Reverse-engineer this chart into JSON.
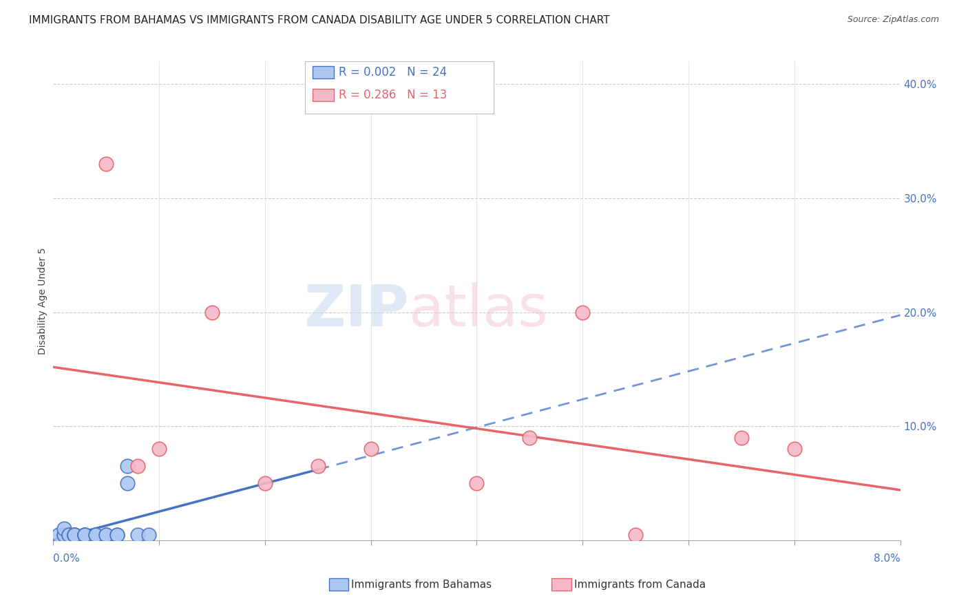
{
  "title": "IMMIGRANTS FROM BAHAMAS VS IMMIGRANTS FROM CANADA DISABILITY AGE UNDER 5 CORRELATION CHART",
  "source": "Source: ZipAtlas.com",
  "ylabel": "Disability Age Under 5",
  "xlim": [
    0.0,
    0.08
  ],
  "ylim": [
    0.0,
    0.42
  ],
  "legend_entries": [
    {
      "label": "Immigrants from Bahamas",
      "color": "#adc8f0",
      "edge": "#5b8dd9",
      "R": "0.002",
      "N": "24"
    },
    {
      "label": "Immigrants from Canada",
      "color": "#f5b8c8",
      "edge": "#e07080",
      "R": "0.286",
      "N": "13"
    }
  ],
  "bahamas_x": [
    0.0005,
    0.001,
    0.001,
    0.001,
    0.0015,
    0.0015,
    0.002,
    0.002,
    0.002,
    0.002,
    0.003,
    0.003,
    0.003,
    0.003,
    0.004,
    0.004,
    0.005,
    0.005,
    0.006,
    0.006,
    0.007,
    0.007,
    0.008,
    0.009
  ],
  "bahamas_y": [
    0.005,
    0.005,
    0.005,
    0.01,
    0.005,
    0.005,
    0.005,
    0.005,
    0.005,
    0.005,
    0.005,
    0.005,
    0.005,
    0.005,
    0.005,
    0.005,
    0.005,
    0.005,
    0.005,
    0.005,
    0.05,
    0.065,
    0.005,
    0.005
  ],
  "canada_x": [
    0.005,
    0.008,
    0.01,
    0.015,
    0.02,
    0.025,
    0.03,
    0.04,
    0.045,
    0.05,
    0.055,
    0.065,
    0.07
  ],
  "canada_y": [
    0.33,
    0.065,
    0.08,
    0.2,
    0.05,
    0.065,
    0.08,
    0.05,
    0.09,
    0.2,
    0.005,
    0.09,
    0.08
  ],
  "blue_line_color": "#4472c4",
  "pink_line_color": "#e8636a",
  "dot_blue_color": "#adc8f0",
  "dot_pink_color": "#f5b8c8",
  "background_color": "#ffffff",
  "grid_color": "#cccccc",
  "title_color": "#222222",
  "right_axis_color": "#4472c4",
  "title_fontsize": 11,
  "source_fontsize": 9,
  "ylabel_fontsize": 10,
  "legend_fontsize": 12,
  "tick_label_fontsize": 11,
  "right_yticks": [
    0.1,
    0.2,
    0.3,
    0.4
  ],
  "right_yticklabels": [
    "10.0%",
    "20.0%",
    "30.0%",
    "40.0%"
  ]
}
